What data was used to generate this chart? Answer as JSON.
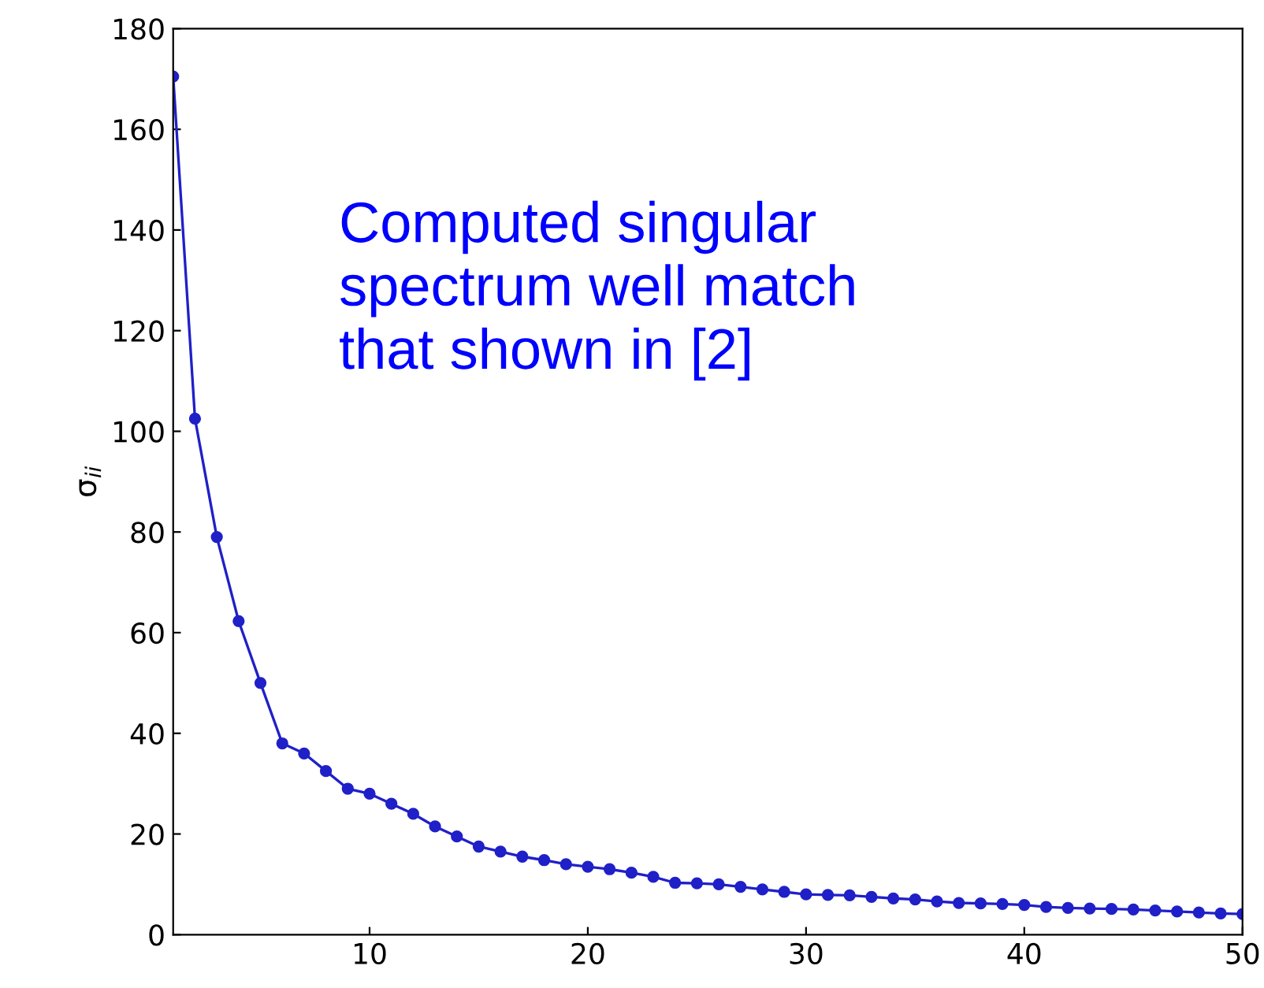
{
  "chart_data": {
    "type": "line",
    "ylabel": "σ$_{ii}$",
    "x": [
      1,
      2,
      3,
      4,
      5,
      6,
      7,
      8,
      9,
      10,
      11,
      12,
      13,
      14,
      15,
      16,
      17,
      18,
      19,
      20,
      21,
      22,
      23,
      24,
      25,
      26,
      27,
      28,
      29,
      30,
      31,
      32,
      33,
      34,
      35,
      36,
      37,
      38,
      39,
      40,
      41,
      42,
      43,
      44,
      45,
      46,
      47,
      48,
      49,
      50
    ],
    "series": [
      {
        "color": "#2020c8",
        "values": [
          170.5,
          102.5,
          79,
          62.3,
          50,
          38,
          36,
          32.5,
          29,
          28,
          26,
          24,
          21.5,
          19.5,
          17.5,
          16.5,
          15.5,
          14.8,
          14,
          13.5,
          13,
          12.3,
          11.5,
          10.3,
          10.2,
          10,
          9.5,
          9,
          8.5,
          8,
          7.9,
          7.8,
          7.5,
          7.2,
          7,
          6.6,
          6.3,
          6.2,
          6.1,
          5.9,
          5.5,
          5.3,
          5.2,
          5.1,
          5,
          4.8,
          4.6,
          4.4,
          4.2,
          4.1
        ]
      }
    ],
    "annotations": [
      "Computed singular\nspectrum well match\nthat shown in [2]"
    ],
    "xlim": [
      1,
      50
    ],
    "xticks": [
      10,
      20,
      30,
      40,
      50
    ],
    "ylim": [
      0,
      180
    ],
    "yticks": [
      0,
      20,
      40,
      60,
      80,
      100,
      120,
      140,
      160,
      180
    ],
    "grid": false,
    "marker": "circle",
    "line_style": "solid"
  }
}
